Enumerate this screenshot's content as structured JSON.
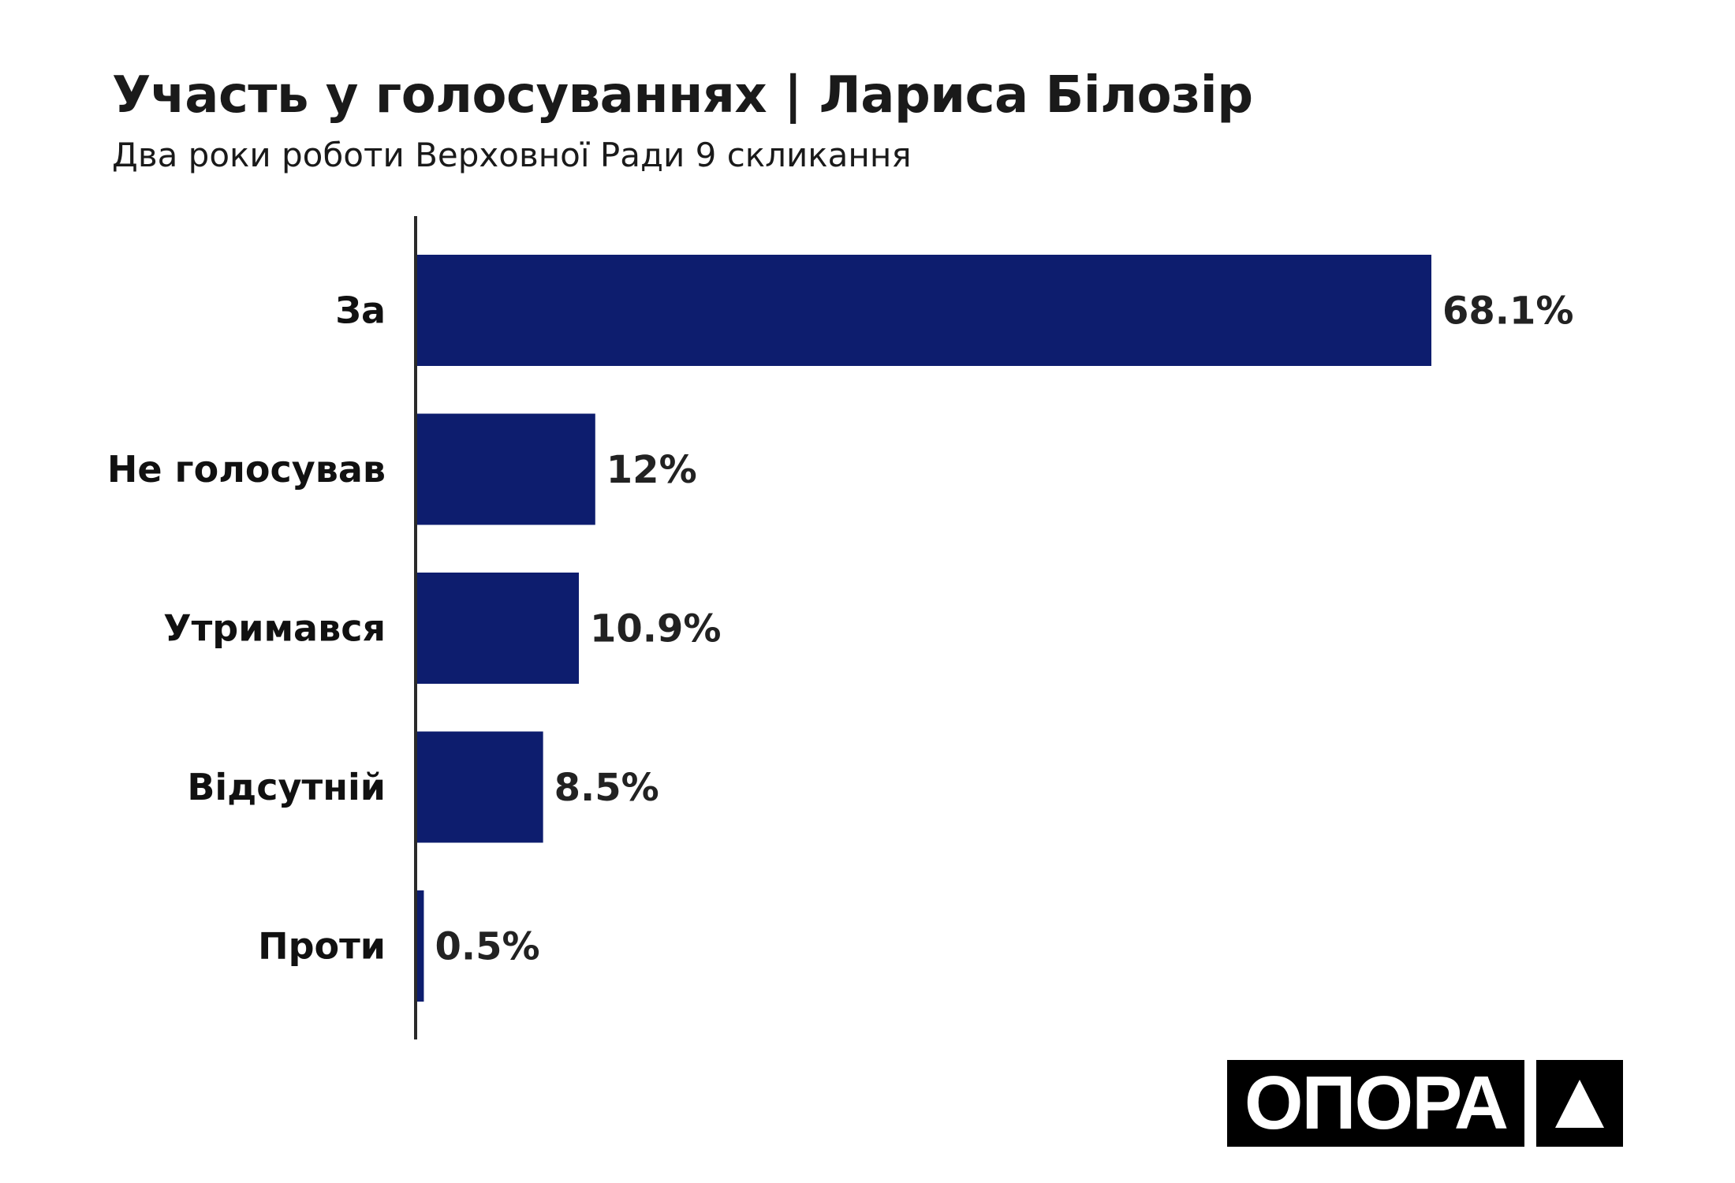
{
  "chart_data": {
    "type": "bar",
    "orientation": "horizontal",
    "title": "Участь у голосуваннях | Лариса Білозір",
    "subtitle": "Два роки роботи Верховної Ради 9 скликання",
    "categories": [
      "За",
      "Не голосував",
      "Утримався",
      "Відсутній",
      "Проти"
    ],
    "values": [
      68.1,
      12,
      10.9,
      8.5,
      0.5
    ],
    "value_labels": [
      "68.1%",
      "12%",
      "10.9%",
      "8.5%",
      "0.5%"
    ],
    "xlabel": "",
    "ylabel": "",
    "xlim": [
      0,
      100
    ],
    "grid": false,
    "bar_color": "#0d1d6e"
  },
  "logo": {
    "text": "ОПОРА"
  }
}
